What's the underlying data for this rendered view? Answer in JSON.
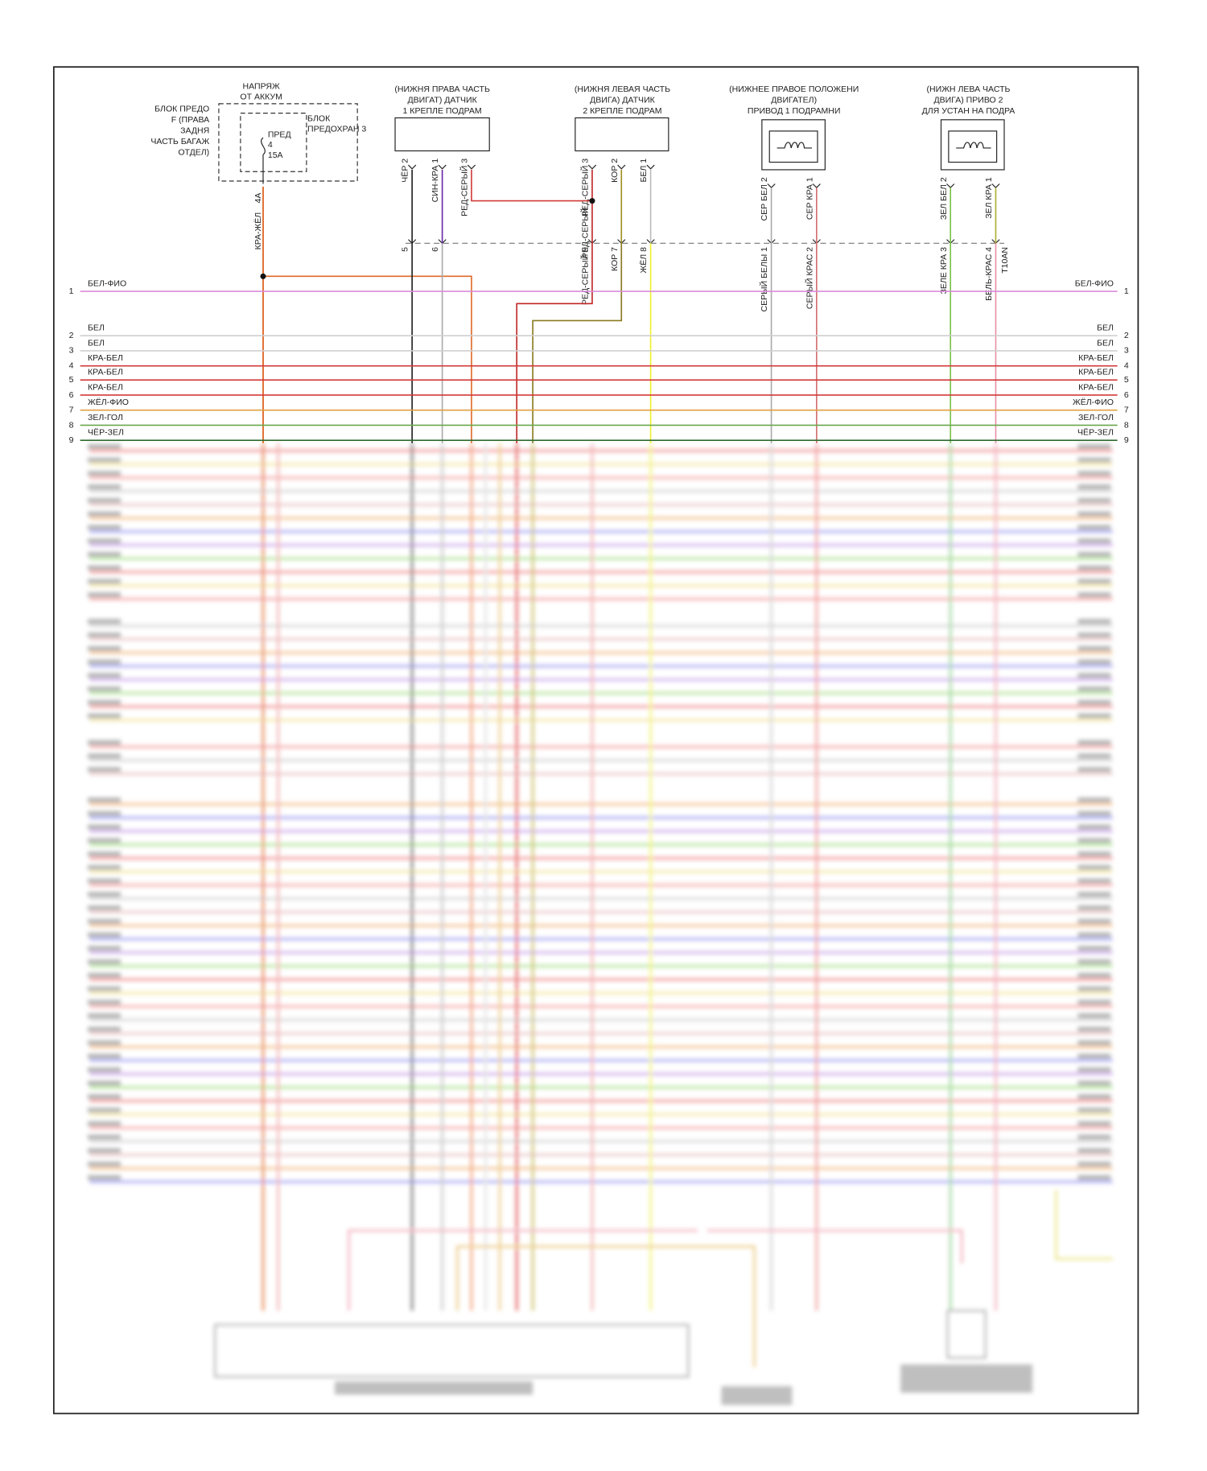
{
  "fuse_block": {
    "supply": [
      "НАПРЯЖ",
      "ОТ АККУМ"
    ],
    "location": [
      "БЛОК ПРЕДО",
      "F (ПРАВА",
      "ЗАДНЯ",
      "ЧАСТЬ БАГАЖ",
      "ОТДЕЛ)"
    ],
    "block": [
      "БЛОК",
      "ПРЕДОХРАН 3"
    ],
    "fuse": [
      "ПРЕД",
      "4",
      "15A"
    ],
    "pin": "4A",
    "wire": "КРА-ЖЁЛ"
  },
  "components": [
    {
      "title": [
        "(НИЖНЯ ПРАВА ЧАСТЬ",
        "ДВИГАТ) ДАТЧИК",
        "1 КРЕПЛЕ ПОДРАМ"
      ],
      "pins": [
        "ЧЁР 2",
        "СИН-КРА 1",
        "РЕД-СЕРЫЙ 3"
      ],
      "lower_pins": [
        "5",
        "6"
      ]
    },
    {
      "title": [
        "(НИЖНЯ ЛЕВАЯ ЧАСТЬ",
        "ДВИГА) ДАТЧИК",
        "2 КРЕПЛЕ ПОДРАМ"
      ],
      "pins": [
        "РЕД-СЕРЫЙ 3",
        "КОР 2",
        "БЕЛ 1"
      ],
      "lower_pins": [
        "РЕД-СЕРЫЙ 9",
        "КОР 7",
        "ЖЁЛ 8"
      ]
    },
    {
      "title": [
        "(НИЖНЕЕ ПРАВОЕ ПОЛОЖЕНИ",
        "ДВИГАТЕЛ)",
        "ПРИВОД 1 ПОДРАМНИ"
      ],
      "pins": [
        "СЕР БЕЛ 2",
        "СЕР КРА 1"
      ],
      "lower_pins": [
        "СЕРЫЙ БЕЛЫ 1",
        "СЕРЫЙ КРАС 2"
      ]
    },
    {
      "title": [
        "(НИЖН ЛЕВА ЧАСТЬ",
        "ДВИГА) ПРИВО 2",
        "ДЛЯ УСТАН НА ПОДРА"
      ],
      "pins": [
        "ЗЕЛ БЕЛ 2",
        "ЗЕЛ КРА 1"
      ],
      "lower_pins": [
        "ЗЕЛЕ КРА 3",
        "БЕЛЬ-КРАС 4"
      ]
    }
  ],
  "splice_label": "РЕД-СЕРЫЙ",
  "connector_id": "T10AN",
  "bus": [
    {
      "number": 1,
      "label": "БЕЛ-ФИО",
      "color": "#d98bd9"
    },
    {
      "number": 2,
      "label": "БЕЛ",
      "color": "#cfcfcf"
    },
    {
      "number": 3,
      "label": "БЕЛ",
      "color": "#cfcfcf"
    },
    {
      "number": 4,
      "label": "КРА-БЕЛ",
      "color": "#d33a3a"
    },
    {
      "number": 5,
      "label": "КРА-БЕЛ",
      "color": "#d33a3a"
    },
    {
      "number": 6,
      "label": "КРА-БЕЛ",
      "color": "#d33a3a"
    },
    {
      "number": 7,
      "label": "ЖЁЛ-ФИО",
      "color": "#e0a040"
    },
    {
      "number": 8,
      "label": "ЗЕЛ-ГОЛ",
      "color": "#6aa84f"
    },
    {
      "number": 9,
      "label": "ЧЁР-ЗЕЛ",
      "color": "#2e6b2e"
    }
  ]
}
